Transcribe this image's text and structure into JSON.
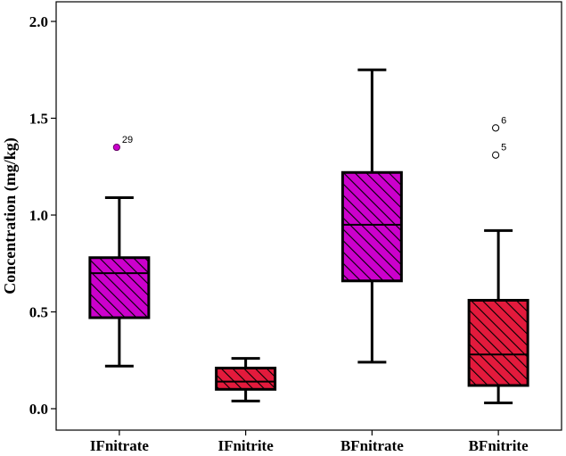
{
  "chart_data": {
    "type": "boxplot",
    "ylabel": "Concentration (mg/kg)",
    "xlabel": "",
    "ylim": [
      -0.1,
      2.1
    ],
    "yticks": [
      0.0,
      0.5,
      1.0,
      1.5,
      2.0
    ],
    "ytick_labels": [
      "0.0",
      "0.5",
      "1.0",
      "1.5",
      "2.0"
    ],
    "categories": [
      "IFnitrate",
      "IFnitrite",
      "BFnitrate",
      "BFnitrite"
    ],
    "boxes": [
      {
        "category": "IFnitrate",
        "whisker_low": 0.22,
        "q1": 0.47,
        "median": 0.7,
        "q3": 0.78,
        "whisker_high": 1.09,
        "color": "#cc00cc",
        "outliers": [
          {
            "value": 1.35,
            "label": "29",
            "filled": true
          }
        ]
      },
      {
        "category": "IFnitrite",
        "whisker_low": 0.04,
        "q1": 0.1,
        "median": 0.14,
        "q3": 0.21,
        "whisker_high": 0.26,
        "color": "#e31a3c",
        "outliers": []
      },
      {
        "category": "BFnitrate",
        "whisker_low": 0.24,
        "q1": 0.66,
        "median": 0.95,
        "q3": 1.22,
        "whisker_high": 1.75,
        "color": "#cc00cc",
        "outliers": []
      },
      {
        "category": "BFnitrite",
        "whisker_low": 0.03,
        "q1": 0.12,
        "median": 0.28,
        "q3": 0.56,
        "whisker_high": 0.92,
        "color": "#e31a3c",
        "outliers": [
          {
            "value": 1.45,
            "label": "6",
            "filled": false
          },
          {
            "value": 1.31,
            "label": "5",
            "filled": false
          }
        ]
      }
    ],
    "grid": false,
    "legend": "none"
  }
}
